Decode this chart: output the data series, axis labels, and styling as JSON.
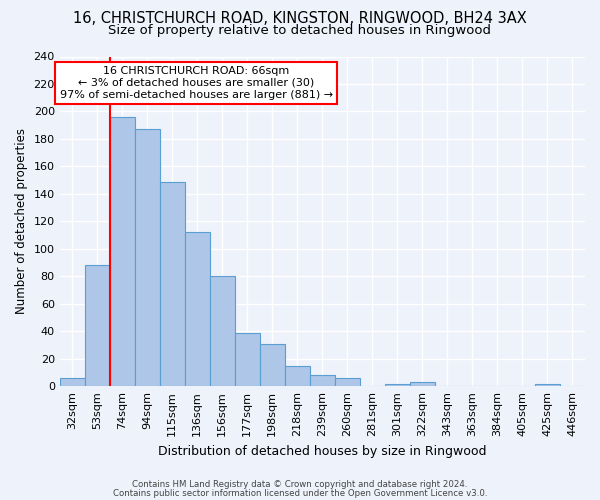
{
  "title1": "16, CHRISTCHURCH ROAD, KINGSTON, RINGWOOD, BH24 3AX",
  "title2": "Size of property relative to detached houses in Ringwood",
  "xlabel": "Distribution of detached houses by size in Ringwood",
  "ylabel": "Number of detached properties",
  "categories": [
    "32sqm",
    "53sqm",
    "74sqm",
    "94sqm",
    "115sqm",
    "136sqm",
    "156sqm",
    "177sqm",
    "198sqm",
    "218sqm",
    "239sqm",
    "260sqm",
    "281sqm",
    "301sqm",
    "322sqm",
    "343sqm",
    "363sqm",
    "384sqm",
    "405sqm",
    "425sqm",
    "446sqm"
  ],
  "values": [
    6,
    88,
    196,
    187,
    149,
    112,
    80,
    39,
    31,
    15,
    8,
    6,
    0,
    2,
    3,
    0,
    0,
    0,
    0,
    2,
    0
  ],
  "bar_color": "#aec6e8",
  "bar_edge_color": "#5a9fd4",
  "red_line_x": 1.5,
  "annotation_line1": "16 CHRISTCHURCH ROAD: 66sqm",
  "annotation_line2": "← 3% of detached houses are smaller (30)",
  "annotation_line3": "97% of semi-detached houses are larger (881) →",
  "annotation_box_color": "white",
  "annotation_box_edge": "red",
  "footer1": "Contains HM Land Registry data © Crown copyright and database right 2024.",
  "footer2": "Contains public sector information licensed under the Open Government Licence v3.0.",
  "ylim": [
    0,
    240
  ],
  "yticks": [
    0,
    20,
    40,
    60,
    80,
    100,
    120,
    140,
    160,
    180,
    200,
    220,
    240
  ],
  "bg_color": "#eef2fb",
  "grid_color": "#ffffff",
  "title1_fontsize": 10.5,
  "title2_fontsize": 9.5,
  "ylabel_fontsize": 8.5,
  "xlabel_fontsize": 9,
  "tick_fontsize": 8,
  "annot_fontsize": 8,
  "footer_fontsize": 6.2
}
